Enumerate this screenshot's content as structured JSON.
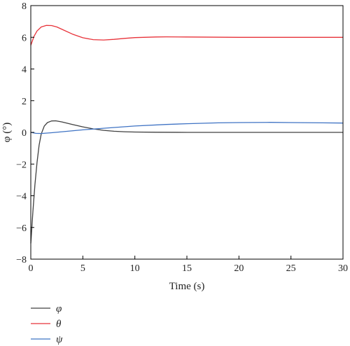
{
  "chart_data": {
    "type": "line",
    "xlabel": "Time (s)",
    "ylabel": "φ (°)",
    "xlim": [
      0,
      30
    ],
    "ylim": [
      -8,
      8
    ],
    "x_ticks": [
      "0",
      "5",
      "10",
      "15",
      "20",
      "25",
      "30"
    ],
    "y_ticks": [
      "−8",
      "−6",
      "−4",
      "−2",
      "0",
      "2",
      "4",
      "6",
      "8"
    ],
    "grid": false,
    "legend_position": "bottom-left, below plot",
    "series": [
      {
        "name": "φ",
        "color": "#404040",
        "x": [
          0,
          0.2,
          0.4,
          0.6,
          0.8,
          1.0,
          1.3,
          1.6,
          2.0,
          2.4,
          3.0,
          4.0,
          5.0,
          6.0,
          7.0,
          8.0,
          9.0,
          10.0,
          12.0,
          15.0,
          20.0,
          25.0,
          30.0
        ],
        "y": [
          -7.0,
          -5.0,
          -3.3,
          -1.9,
          -0.8,
          -0.1,
          0.4,
          0.62,
          0.72,
          0.73,
          0.66,
          0.5,
          0.35,
          0.22,
          0.13,
          0.07,
          0.04,
          0.02,
          0.01,
          0.0,
          0.0,
          0.0,
          0.0
        ]
      },
      {
        "name": "θ",
        "color": "#e8333a",
        "x": [
          0,
          0.3,
          0.6,
          1.0,
          1.5,
          2.0,
          2.5,
          3.0,
          4.0,
          5.0,
          6.0,
          7.0,
          8.0,
          9.0,
          10.0,
          12.0,
          13.0,
          15.0,
          20.0,
          25.0,
          30.0
        ],
        "y": [
          5.5,
          6.05,
          6.4,
          6.65,
          6.75,
          6.74,
          6.65,
          6.5,
          6.2,
          5.97,
          5.85,
          5.83,
          5.87,
          5.93,
          5.98,
          6.02,
          6.03,
          6.02,
          6.0,
          6.0,
          6.0
        ]
      },
      {
        "name": "ψ",
        "color": "#3f73c4",
        "x": [
          0,
          0.5,
          1.0,
          2.0,
          3.0,
          5.0,
          7.0,
          10.0,
          13.0,
          15.0,
          18.0,
          20.0,
          23.0,
          25.0,
          28.0,
          30.0
        ],
        "y": [
          0.0,
          -0.06,
          -0.07,
          -0.02,
          0.04,
          0.16,
          0.26,
          0.4,
          0.5,
          0.55,
          0.6,
          0.62,
          0.63,
          0.62,
          0.6,
          0.59
        ]
      }
    ]
  }
}
